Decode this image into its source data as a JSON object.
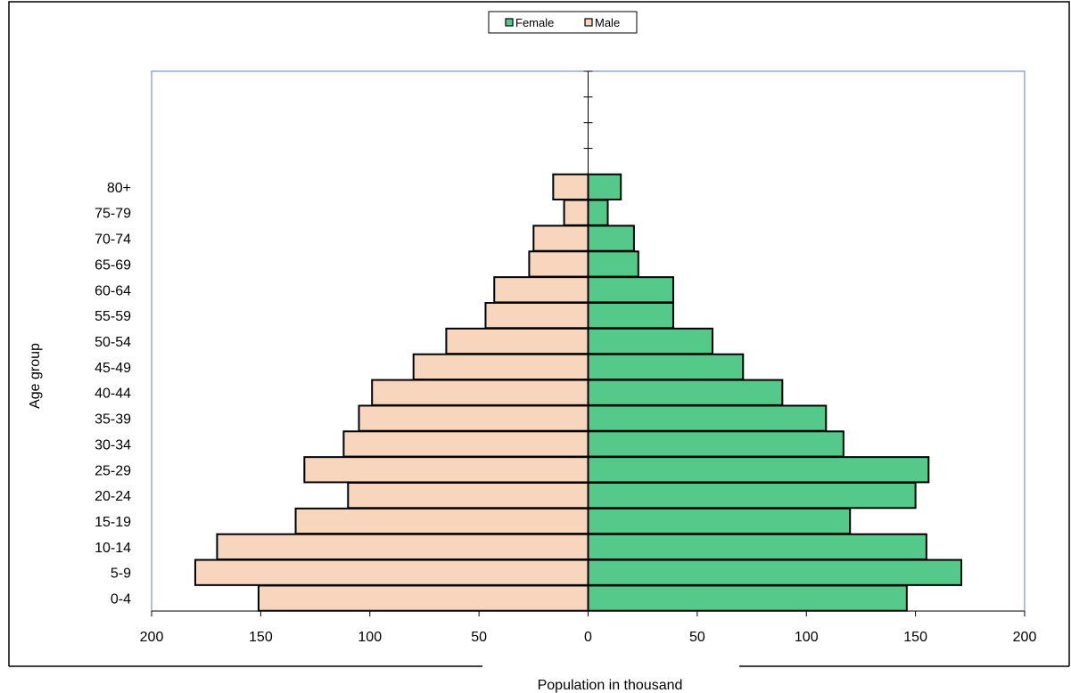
{
  "chart_data": {
    "type": "bar",
    "orientation": "horizontal",
    "subtype": "population-pyramid",
    "categories": [
      "0-4",
      "5-9",
      "10-14",
      "15-19",
      "20-24",
      "25-29",
      "30-34",
      "35-39",
      "40-44",
      "45-49",
      "50-54",
      "55-59",
      "60-64",
      "65-69",
      "70-74",
      "75-79",
      "80+"
    ],
    "series": [
      {
        "name": "Female",
        "color": "#55c98a",
        "side": "right",
        "values": [
          146,
          171,
          155,
          120,
          150,
          156,
          117,
          109,
          89,
          71,
          57,
          39,
          39,
          23,
          21,
          9,
          15
        ]
      },
      {
        "name": "Male",
        "color": "#f8d5bd",
        "side": "left",
        "values": [
          151,
          180,
          170,
          134,
          110,
          130,
          112,
          105,
          99,
          80,
          65,
          47,
          43,
          27,
          25,
          11,
          16
        ]
      }
    ],
    "xlabel": "Population in thousand",
    "ylabel": "Age group",
    "xlim": [
      -200,
      200
    ],
    "xticks": [
      -200,
      -150,
      -100,
      -50,
      0,
      50,
      100,
      150,
      200
    ],
    "xtick_labels": [
      "200",
      "150",
      "100",
      "50",
      "0",
      "50",
      "100",
      "150",
      "200"
    ],
    "legend": {
      "position": "top-center",
      "entries": [
        "Female",
        "Male"
      ]
    },
    "grid": false
  }
}
